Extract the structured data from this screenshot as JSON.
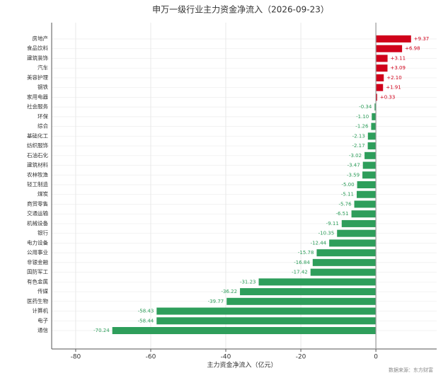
{
  "chart_data": {
    "type": "barh",
    "title": "申万一级行业主力资金净流入（2026-09-23）",
    "xlabel": "主力资金净流入（亿元）",
    "source": "数据来源：东方财富",
    "categories": [
      "房地产",
      "食品饮料",
      "建筑装饰",
      "汽车",
      "美容护理",
      "钢铁",
      "家用电器",
      "社会服务",
      "环保",
      "综合",
      "基础化工",
      "纺织服饰",
      "石油石化",
      "建筑材料",
      "农林牧渔",
      "轻工制造",
      "煤炭",
      "商贸零售",
      "交通运输",
      "机械设备",
      "银行",
      "电力设备",
      "公用事业",
      "非银金融",
      "国防军工",
      "有色金属",
      "传媒",
      "医药生物",
      "计算机",
      "电子",
      "通信"
    ],
    "values": [
      9.37,
      6.98,
      3.11,
      3.09,
      2.1,
      1.91,
      0.33,
      -0.34,
      -1.1,
      -1.26,
      -2.13,
      -2.17,
      -3.02,
      -3.47,
      -3.59,
      -5.0,
      -5.11,
      -5.76,
      -6.51,
      -9.11,
      -10.35,
      -12.44,
      -15.78,
      -16.84,
      -17.42,
      -31.23,
      -36.22,
      -39.77,
      -58.43,
      -58.44,
      -70.24
    ],
    "value_labels": [
      "+9.37",
      "+6.98",
      "+3.11",
      "+3.09",
      "+2.10",
      "+1.91",
      "+0.33",
      "-0.34",
      "-1.10",
      "-1.26",
      "-2.13",
      "-2.17",
      "-3.02",
      "-3.47",
      "-3.59",
      "-5.00",
      "-5.11",
      "-5.76",
      "-6.51",
      "-9.11",
      "-10.35",
      "-12.44",
      "-15.78",
      "-16.84",
      "-17.42",
      "-31.23",
      "-36.22",
      "-39.77",
      "-58.43",
      "-58.44",
      "-70.24"
    ],
    "positive_color": "#d0021b",
    "negative_color": "#2e9e5b",
    "xlim": [
      -86.4,
      16.2
    ],
    "xticks": [
      -80,
      -60,
      -40,
      -20,
      0
    ],
    "grid": true
  }
}
